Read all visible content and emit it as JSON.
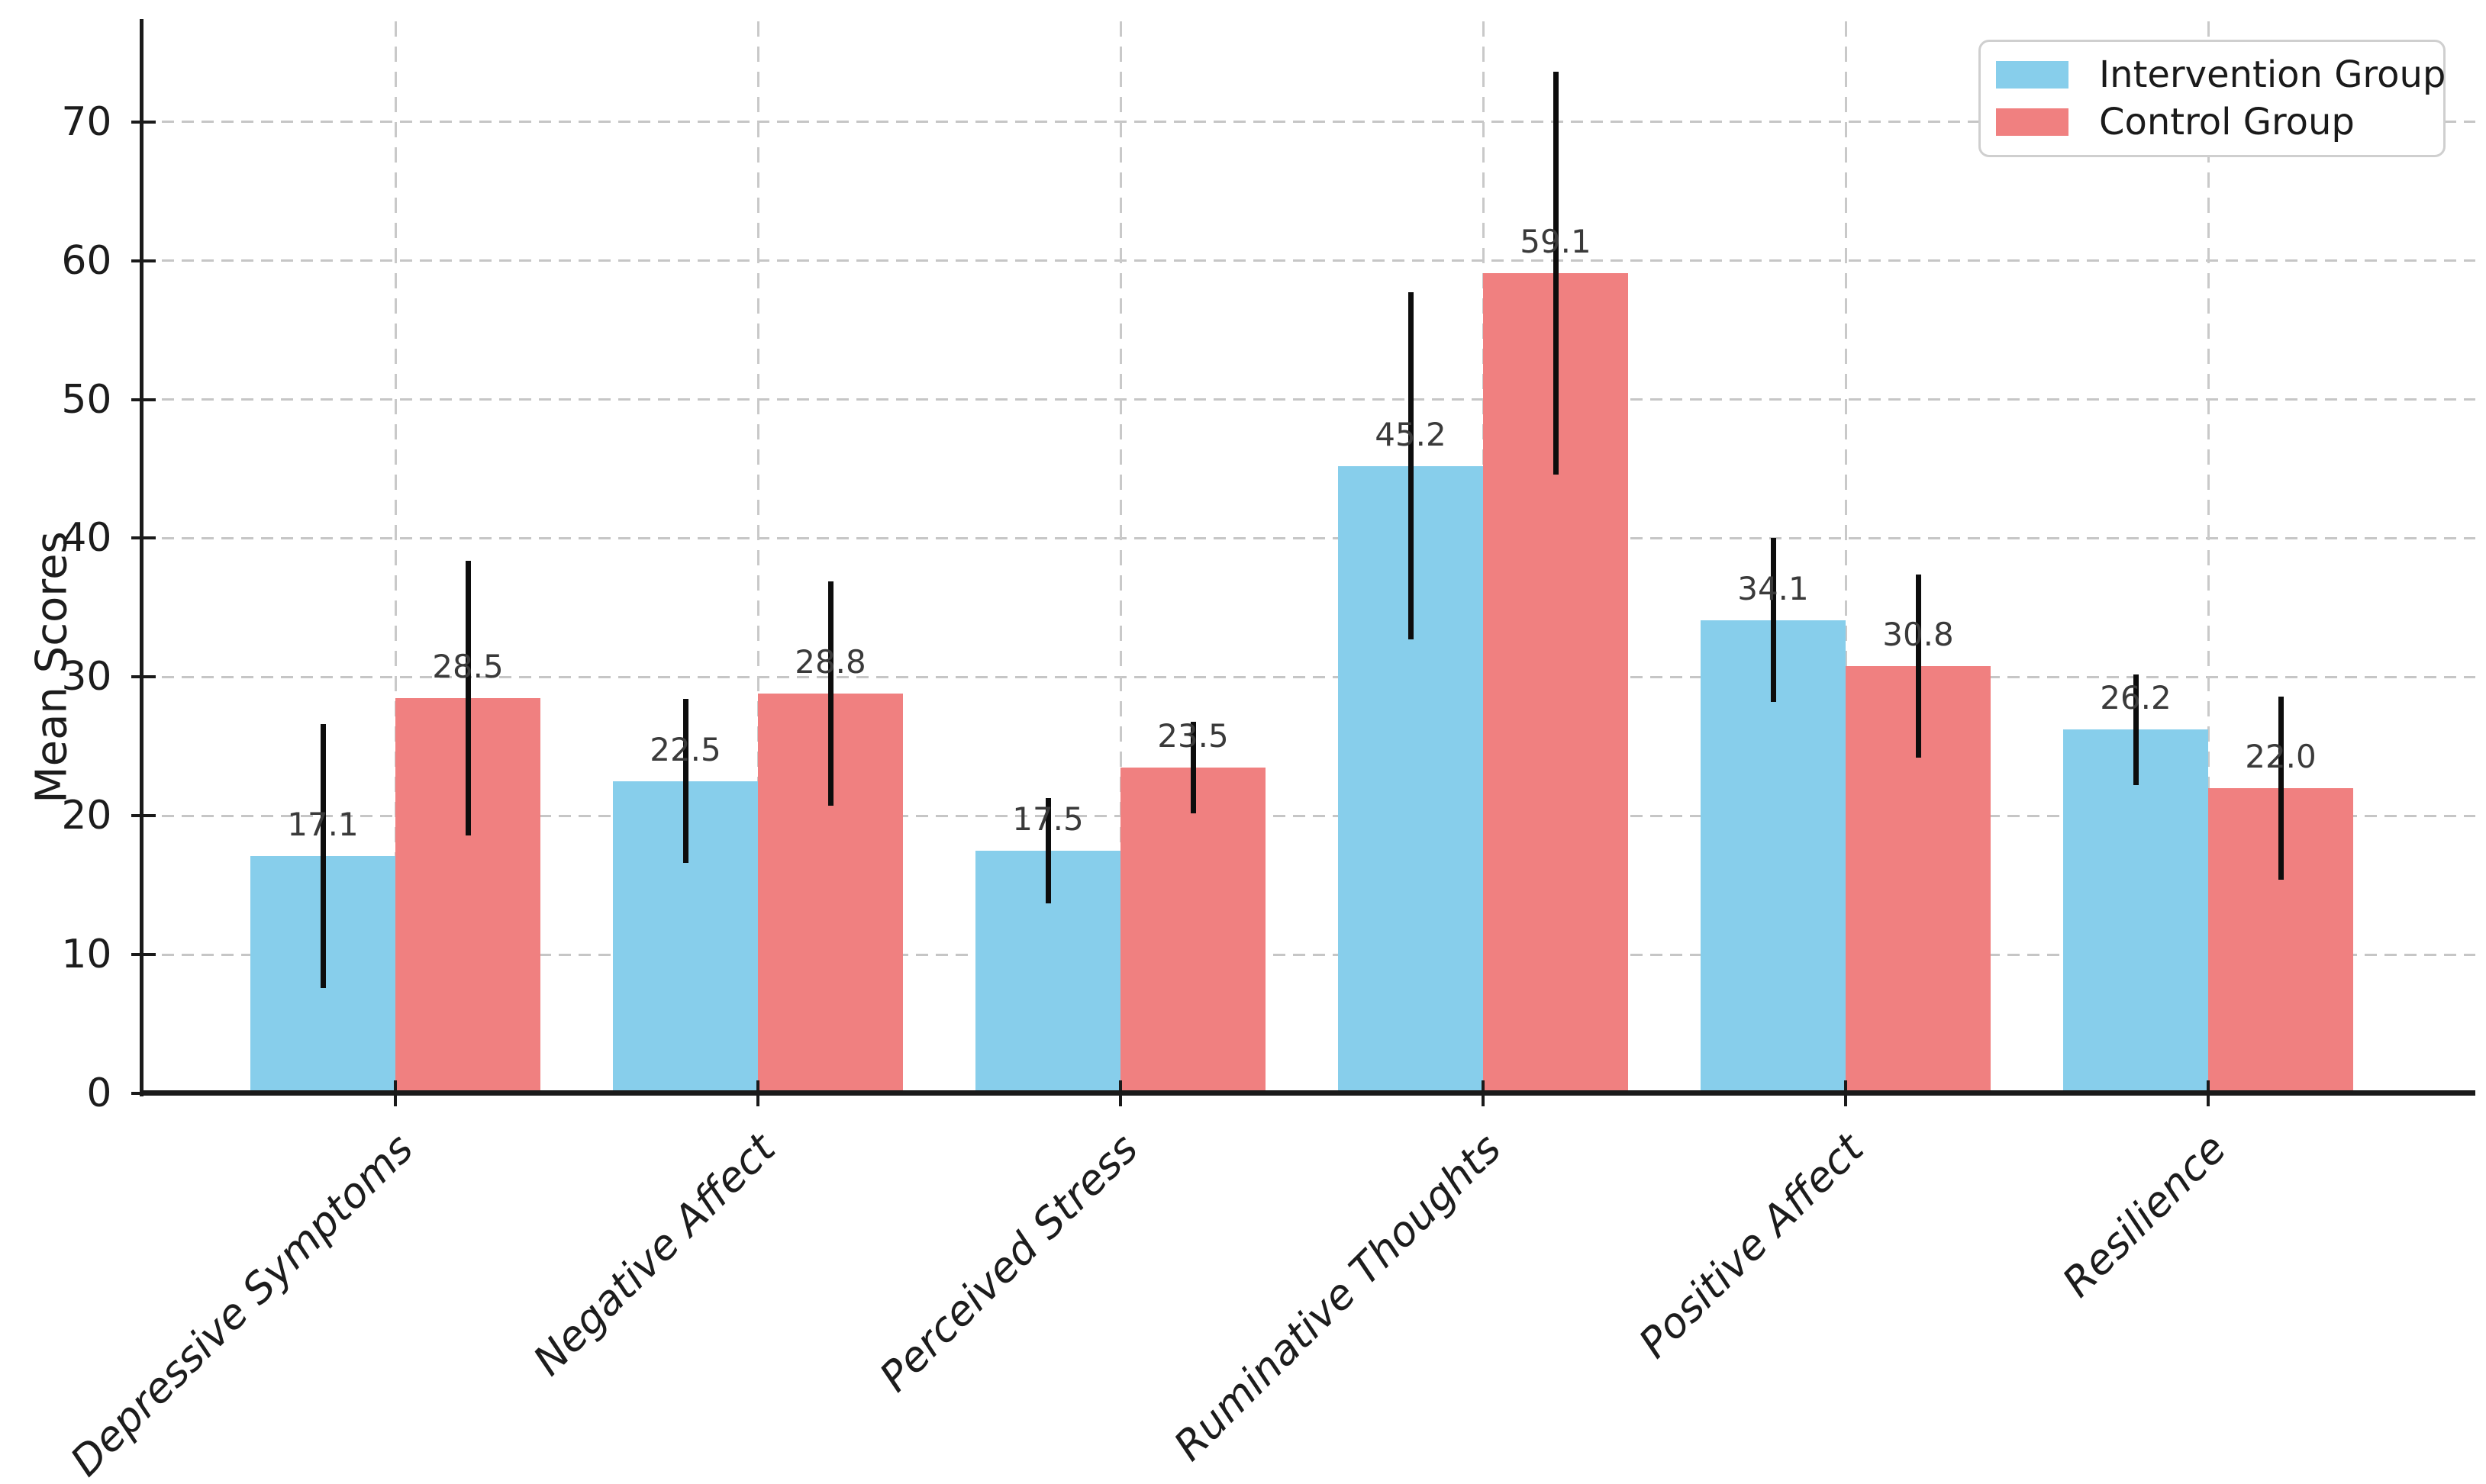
{
  "chart_data": {
    "type": "bar",
    "title": "",
    "xlabel": "",
    "ylabel": "Mean Scores",
    "categories": [
      "Depressive Symptoms",
      "Negative Affect",
      "Perceived Stress",
      "Ruminative Thoughts",
      "Positive Affect",
      "Resilience"
    ],
    "series": [
      {
        "name": "Intervention Group",
        "color": "#87CEEB",
        "values": [
          17.1,
          22.5,
          17.5,
          45.2,
          34.1,
          26.2
        ],
        "errors": [
          9.5,
          5.9,
          3.8,
          12.5,
          5.9,
          4.0
        ],
        "labels": [
          "17.1",
          "22.5",
          "17.5",
          "45.2",
          "34.1",
          "26.2"
        ]
      },
      {
        "name": "Control Group",
        "color": "#F08080",
        "values": [
          28.5,
          28.8,
          23.5,
          59.1,
          30.8,
          22.0
        ],
        "errors": [
          9.9,
          8.1,
          3.3,
          14.5,
          6.6,
          6.6
        ],
        "labels": [
          "28.5",
          "28.8",
          "23.5",
          "59.1",
          "30.8",
          "22.0"
        ]
      }
    ],
    "yticks": [
      0,
      10,
      20,
      30,
      40,
      50,
      60,
      70
    ],
    "ylim": [
      0,
      77.2
    ],
    "grid": true,
    "grid_style": "dashed",
    "error_bar_color": "#000000",
    "legend_position": "upper right"
  },
  "axes": {
    "ylabel": "Mean Scores",
    "ytick_labels": [
      "0",
      "10",
      "20",
      "30",
      "40",
      "50",
      "60",
      "70"
    ]
  },
  "legend": {
    "items": [
      {
        "label": "Intervention Group",
        "color": "#87CEEB"
      },
      {
        "label": "Control Group",
        "color": "#F08080"
      }
    ]
  }
}
